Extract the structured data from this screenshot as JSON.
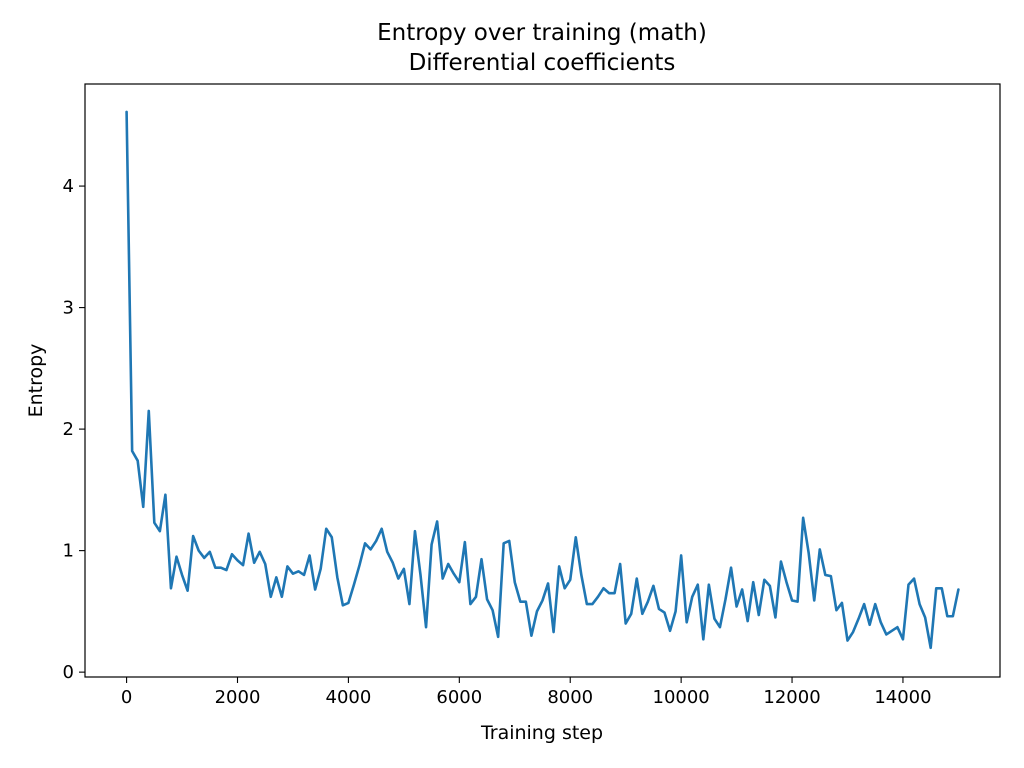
{
  "chart_data": {
    "type": "line",
    "title": "Entropy over training (math)",
    "subtitle": "Differential coefficients",
    "xlabel": "Training step",
    "ylabel": "Entropy",
    "xlim": [
      -750,
      15750
    ],
    "ylim": [
      -0.04,
      4.84
    ],
    "grid": false,
    "line_color": "#1f77b4",
    "x_ticks": [
      {
        "value": 0,
        "label": "0"
      },
      {
        "value": 2000,
        "label": "2000"
      },
      {
        "value": 4000,
        "label": "4000"
      },
      {
        "value": 6000,
        "label": "6000"
      },
      {
        "value": 8000,
        "label": "8000"
      },
      {
        "value": 10000,
        "label": "10000"
      },
      {
        "value": 12000,
        "label": "12000"
      },
      {
        "value": 14000,
        "label": "14000"
      }
    ],
    "y_ticks": [
      {
        "value": 0,
        "label": "0"
      },
      {
        "value": 1,
        "label": "1"
      },
      {
        "value": 2,
        "label": "2"
      },
      {
        "value": 3,
        "label": "3"
      },
      {
        "value": 4,
        "label": "4"
      }
    ],
    "series": [
      {
        "x": [
          0,
          100,
          200,
          300,
          400,
          500,
          600,
          700,
          800,
          900,
          1000,
          1100,
          1200,
          1300,
          1400,
          1500,
          1600,
          1700,
          1800,
          1900,
          2000,
          2100,
          2200,
          2300,
          2400,
          2500,
          2600,
          2700,
          2800,
          2900,
          3000,
          3100,
          3200,
          3300,
          3400,
          3500,
          3600,
          3700,
          3800,
          3900,
          4000,
          4100,
          4200,
          4300,
          4400,
          4500,
          4600,
          4700,
          4800,
          4900,
          5000,
          5100,
          5200,
          5300,
          5400,
          5500,
          5600,
          5700,
          5800,
          5900,
          6000,
          6100,
          6200,
          6300,
          6400,
          6500,
          6600,
          6700,
          6800,
          6900,
          7000,
          7100,
          7200,
          7300,
          7400,
          7500,
          7600,
          7700,
          7800,
          7900,
          8000,
          8100,
          8200,
          8300,
          8400,
          8500,
          8600,
          8700,
          8800,
          8900,
          9000,
          9100,
          9200,
          9300,
          9400,
          9500,
          9600,
          9700,
          9800,
          9900,
          10000,
          10100,
          10200,
          10300,
          10400,
          10500,
          10600,
          10700,
          10800,
          10900,
          11000,
          11100,
          11200,
          11300,
          11400,
          11500,
          11600,
          11700,
          11800,
          11900,
          12000,
          12100,
          12200,
          12300,
          12400,
          12500,
          12600,
          12700,
          12800,
          12900,
          13000,
          13100,
          13200,
          13300,
          13400,
          13500,
          13600,
          13700,
          13800,
          13900,
          14000,
          14100,
          14200,
          14300,
          14400,
          14500,
          14600,
          14700,
          14800,
          14900,
          15000
        ],
        "y": [
          4.61,
          1.82,
          1.74,
          1.36,
          2.15,
          1.23,
          1.16,
          1.46,
          0.69,
          0.95,
          0.8,
          0.67,
          1.12,
          1.0,
          0.94,
          0.99,
          0.86,
          0.86,
          0.84,
          0.97,
          0.92,
          0.88,
          1.14,
          0.9,
          0.99,
          0.89,
          0.62,
          0.78,
          0.62,
          0.87,
          0.81,
          0.83,
          0.8,
          0.96,
          0.68,
          0.85,
          1.18,
          1.11,
          0.78,
          0.55,
          0.57,
          0.72,
          0.88,
          1.06,
          1.01,
          1.08,
          1.18,
          0.99,
          0.9,
          0.77,
          0.85,
          0.56,
          1.16,
          0.8,
          0.37,
          1.05,
          1.24,
          0.77,
          0.89,
          0.81,
          0.74,
          1.07,
          0.56,
          0.62,
          0.93,
          0.6,
          0.51,
          0.29,
          1.06,
          1.08,
          0.74,
          0.58,
          0.58,
          0.3,
          0.5,
          0.59,
          0.73,
          0.33,
          0.87,
          0.69,
          0.76,
          1.11,
          0.8,
          0.56,
          0.56,
          0.62,
          0.69,
          0.65,
          0.65,
          0.89,
          0.4,
          0.48,
          0.77,
          0.48,
          0.58,
          0.71,
          0.52,
          0.49,
          0.34,
          0.5,
          0.96,
          0.41,
          0.62,
          0.72,
          0.27,
          0.72,
          0.44,
          0.37,
          0.6,
          0.86,
          0.54,
          0.68,
          0.42,
          0.74,
          0.47,
          0.76,
          0.71,
          0.45,
          0.91,
          0.74,
          0.59,
          0.58,
          1.27,
          0.98,
          0.59,
          1.01,
          0.8,
          0.79,
          0.51,
          0.57,
          0.26,
          0.33,
          0.44,
          0.56,
          0.39,
          0.56,
          0.41,
          0.31,
          0.34,
          0.37,
          0.27,
          0.72,
          0.77,
          0.56,
          0.45,
          0.2,
          0.69,
          0.69,
          0.46,
          0.46,
          0.68
        ]
      }
    ]
  }
}
